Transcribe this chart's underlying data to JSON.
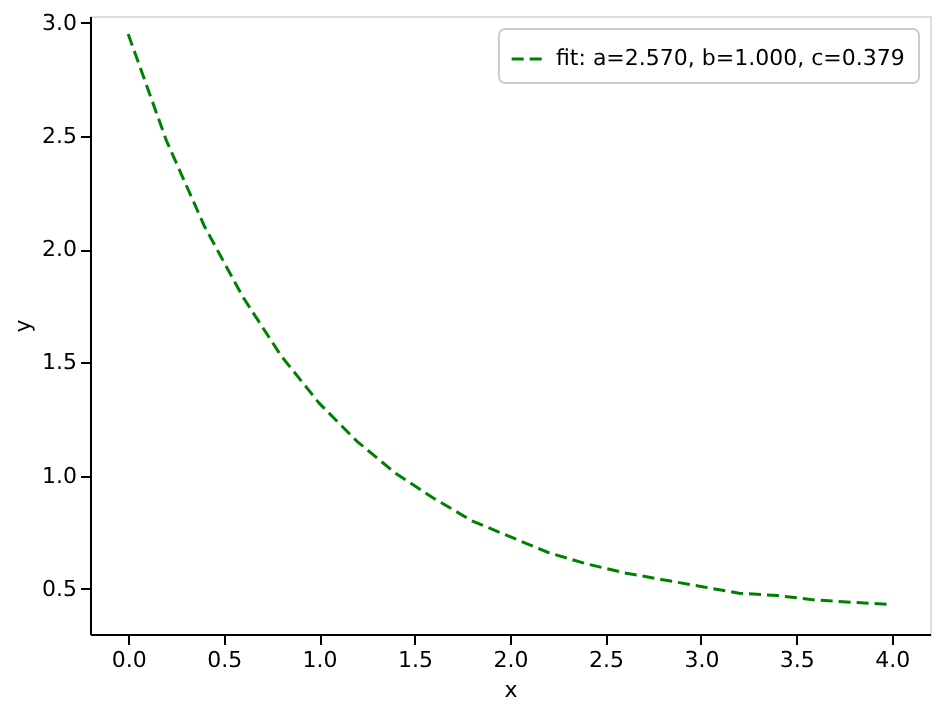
{
  "chart_data": {
    "type": "line",
    "xlabel": "x",
    "ylabel": "y",
    "x": [
      0,
      0.2,
      0.4,
      0.6,
      0.8,
      1.0,
      1.2,
      1.4,
      1.6,
      1.8,
      2.0,
      2.2,
      2.4,
      2.6,
      2.8,
      3.0,
      3.2,
      3.4,
      3.6,
      3.8,
      4.0
    ],
    "series": [
      {
        "name": "fit: a=2.570, b=1.000, c=0.379",
        "color": "#008000",
        "values": [
          2.95,
          2.48,
          2.1,
          1.79,
          1.53,
          1.32,
          1.15,
          1.01,
          0.9,
          0.8,
          0.73,
          0.66,
          0.61,
          0.57,
          0.54,
          0.51,
          0.48,
          0.47,
          0.45,
          0.44,
          0.43
        ]
      }
    ],
    "xlim": [
      -0.2,
      4.2
    ],
    "ylim": [
      0.3,
      3.03
    ],
    "xticks": [
      {
        "value": 0,
        "label": "0.0"
      },
      0.5,
      {
        "value": 1,
        "label": "1.0"
      },
      1.5,
      {
        "value": 2,
        "label": "2.0"
      },
      2.5,
      {
        "value": 3,
        "label": "3.0"
      },
      3.5,
      {
        "value": 4,
        "label": "4.0"
      }
    ],
    "yticks": [
      0.5,
      {
        "value": 1,
        "label": "1.0"
      },
      1.5,
      {
        "value": 2,
        "label": "2.0"
      },
      2.5,
      {
        "value": 3,
        "label": "3.0"
      }
    ],
    "line_style": "dashed",
    "marker": "none",
    "grid": false,
    "legend": "top right"
  }
}
